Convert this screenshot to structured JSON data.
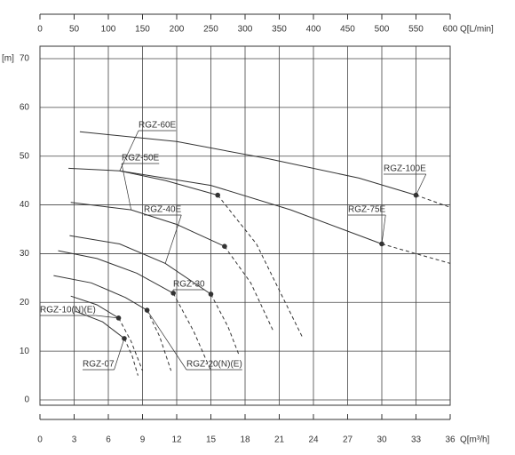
{
  "chart_data": {
    "type": "line",
    "xlabel": "Q[m³/h]",
    "xlim": [
      0,
      36
    ],
    "xticks": [
      0,
      3,
      6,
      9,
      12,
      15,
      18,
      21,
      24,
      27,
      30,
      33,
      36
    ],
    "x2label": "Q[L/min]",
    "x2lim": [
      0,
      600
    ],
    "x2ticks": [
      0,
      50,
      100,
      150,
      200,
      250,
      300,
      350,
      400,
      450,
      500,
      550,
      600
    ],
    "ylabel": "[m]",
    "ylim": [
      0,
      70
    ],
    "yticks": [
      0,
      10,
      20,
      30,
      40,
      50,
      60,
      70
    ],
    "grid": true,
    "color": "#333333",
    "series": [
      {
        "name": "RGZ-100E",
        "x": [
          3.5,
          12,
          20,
          28,
          33
        ],
        "values": [
          55,
          53,
          49.5,
          45.5,
          42
        ],
        "dash_x": [
          33,
          36
        ],
        "dash_values": [
          42,
          39.5
        ],
        "point_x": 33,
        "point_y": 42
      },
      {
        "name": "RGZ-75E",
        "x": [
          7,
          15,
          22,
          30
        ],
        "values": [
          47,
          44,
          39,
          32
        ],
        "dash_x": [
          30,
          36
        ],
        "dash_values": [
          32,
          28
        ],
        "point_x": 30,
        "point_y": 32
      },
      {
        "name": "RGZ-60E",
        "x": [
          2.5,
          7,
          11,
          15.6
        ],
        "values": [
          47.5,
          47,
          45,
          42
        ],
        "dash_x": [
          15.6,
          19,
          23
        ],
        "dash_values": [
          42,
          32,
          13
        ],
        "point_x": 15.6,
        "point_y": 42
      },
      {
        "name": "RGZ-50E",
        "x": [
          2.7,
          8,
          12,
          16.2
        ],
        "values": [
          40.5,
          39,
          36,
          31.5
        ],
        "dash_x": [
          16.2,
          18.5,
          20.5
        ],
        "dash_values": [
          31.5,
          24,
          14
        ],
        "point_x": 16.2,
        "point_y": 31.5
      },
      {
        "name": "RGZ-40E",
        "x": [
          2.6,
          7,
          11,
          15
        ],
        "values": [
          33.7,
          32,
          28,
          21.7
        ],
        "dash_x": [
          15,
          16.5,
          17.5
        ],
        "dash_values": [
          21.7,
          15,
          9
        ],
        "point_x": 15,
        "point_y": 21.7
      },
      {
        "name": "RGZ-30",
        "x": [
          1.6,
          5,
          8.5,
          11.7
        ],
        "values": [
          30.6,
          29,
          26,
          21.9
        ],
        "dash_x": [
          11.7,
          13.5,
          15
        ],
        "dash_values": [
          21.9,
          14,
          6
        ],
        "point_x": 11.7,
        "point_y": 21.9
      },
      {
        "name": "RGZ-20(N)(E)",
        "x": [
          1.2,
          4.5,
          7.5,
          9.4
        ],
        "values": [
          25.5,
          24,
          21,
          18.4
        ],
        "dash_x": [
          9.4,
          10.5,
          11.5
        ],
        "dash_values": [
          18.4,
          13,
          6
        ],
        "point_x": 9.4,
        "point_y": 18.4
      },
      {
        "name": "RGZ-10(N)(E)",
        "x": [
          2.7,
          5,
          6.9
        ],
        "values": [
          21.3,
          19.5,
          16.8
        ],
        "dash_x": [
          6.9,
          8,
          9
        ],
        "dash_values": [
          16.8,
          12,
          6
        ],
        "point_x": 6.9,
        "point_y": 16.8
      },
      {
        "name": "RGZ-07",
        "x": [
          3.1,
          5.5,
          7.4
        ],
        "values": [
          18.2,
          16,
          12.6
        ],
        "dash_x": [
          7.4,
          8.1,
          8.6
        ],
        "dash_values": [
          12.6,
          9,
          5
        ],
        "point_x": 7.4,
        "point_y": 12.6
      }
    ]
  }
}
